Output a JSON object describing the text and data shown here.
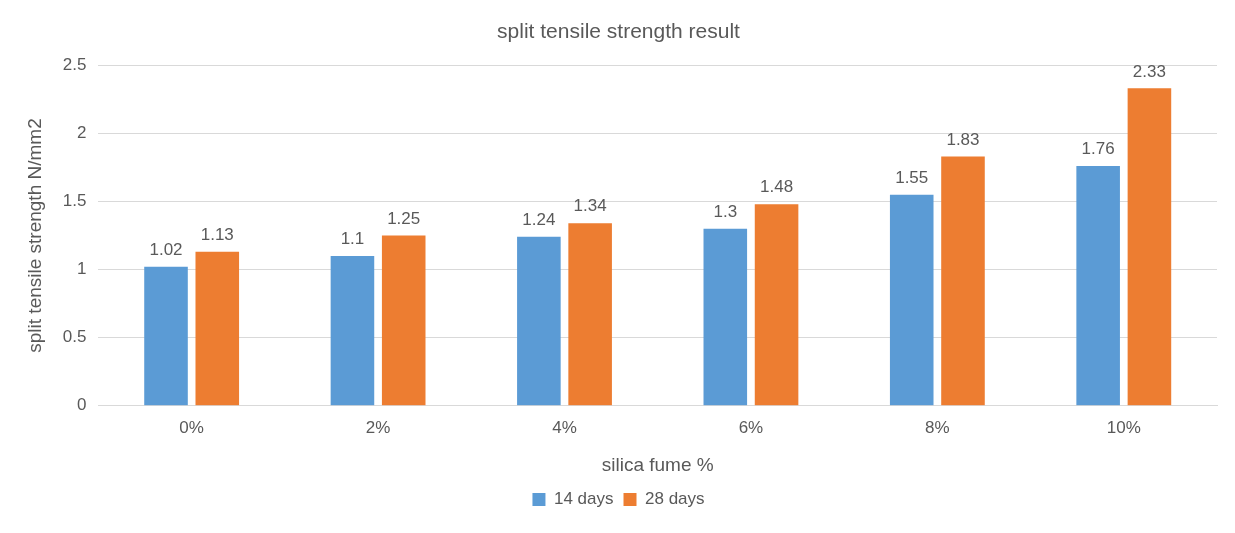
{
  "chart_data": {
    "type": "bar",
    "title": "split tensile strength result",
    "xlabel": "silica fume %",
    "ylabel": "split tensile strength N/mm2",
    "categories": [
      "0%",
      "2%",
      "4%",
      "6%",
      "8%",
      "10%"
    ],
    "series": [
      {
        "name": "14 days",
        "color": "#5b9bd5",
        "values": [
          1.02,
          1.1,
          1.24,
          1.3,
          1.55,
          1.76
        ]
      },
      {
        "name": "28 days",
        "color": "#ed7d31",
        "values": [
          1.13,
          1.25,
          1.34,
          1.48,
          1.83,
          2.33
        ]
      }
    ],
    "ylim": [
      0,
      2.5
    ],
    "yticks": [
      0,
      0.5,
      1,
      1.5,
      2,
      2.5
    ],
    "grid": "y",
    "legend": "bottom",
    "data_labels": true
  }
}
